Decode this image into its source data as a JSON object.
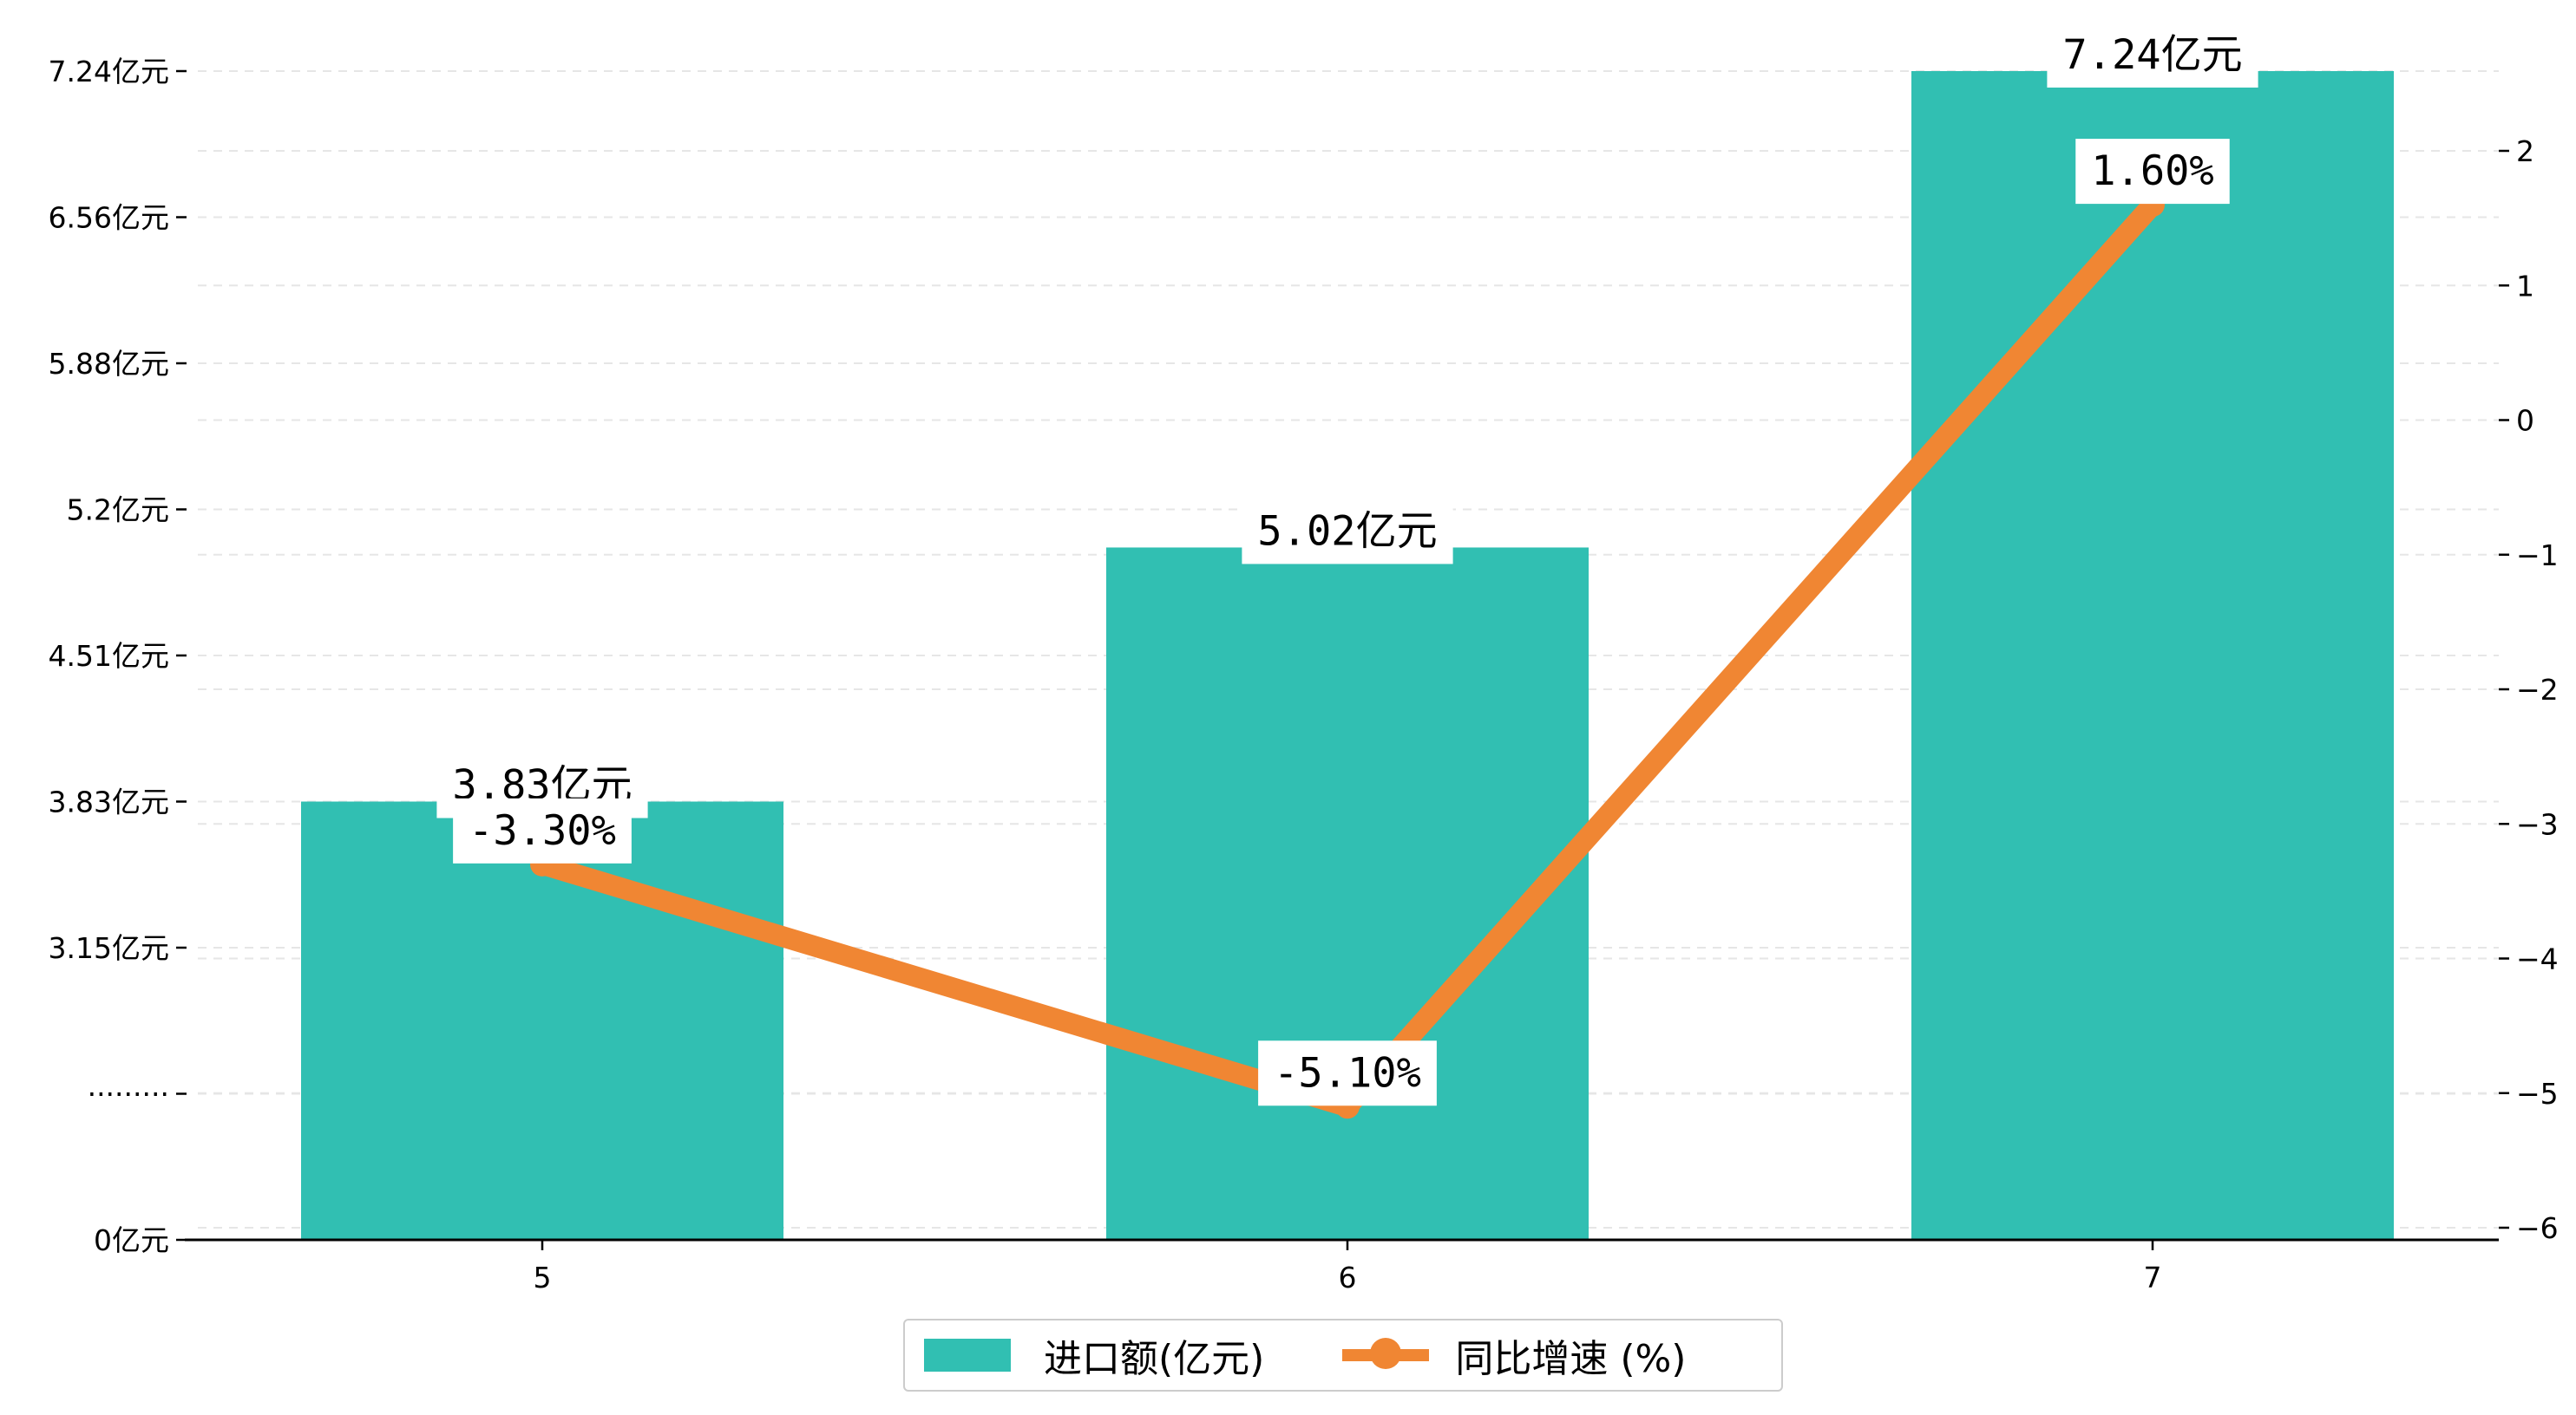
{
  "colors": {
    "bar": "#31bfb2",
    "line": "#f08633",
    "grid": "#e6e6e6",
    "axis": "#000000"
  },
  "legend": {
    "bar_label": "进口额(亿元)",
    "line_label": "同比增速 (%)"
  },
  "chart_data": {
    "type": "bar",
    "categories": [
      "5",
      "6",
      "7"
    ],
    "series": [
      {
        "name": "进口额(亿元)",
        "type": "bar",
        "axis": "left",
        "values": [
          3.83,
          5.02,
          7.24
        ],
        "labels": [
          "3.83亿元",
          "5.02亿元",
          "7.24亿元"
        ]
      },
      {
        "name": "同比增速 (%)",
        "type": "line",
        "axis": "right",
        "values": [
          -3.3,
          -5.1,
          1.6
        ],
        "labels": [
          "-3.30%",
          "-5.10%",
          "1.60%"
        ]
      }
    ],
    "y_left": {
      "ticks": [
        0,
        2.46,
        3.15,
        3.83,
        4.51,
        5.2,
        5.88,
        6.56,
        7.24
      ],
      "tick_labels": [
        "0亿元",
        "·········",
        "3.15亿元",
        "3.83亿元",
        "4.51亿元",
        "5.2亿元",
        "5.88亿元",
        "6.56亿元",
        "7.24亿元"
      ],
      "range_values": [
        0,
        3.15,
        7.24
      ]
    },
    "y_right": {
      "ticks": [
        -6,
        -5,
        -4,
        -3,
        -2,
        -1,
        0,
        1,
        2
      ],
      "tick_labels": [
        "−6",
        "−5",
        "−4",
        "−3",
        "−2",
        "−1",
        "0",
        "1",
        "2"
      ],
      "ylim": [
        -6,
        2.65
      ]
    },
    "grid": true,
    "legend_position": "bottom-center"
  }
}
